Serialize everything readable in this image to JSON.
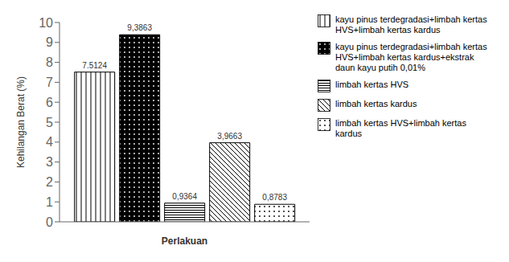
{
  "chart_data": {
    "type": "bar",
    "xlabel": "Perlakuan",
    "ylabel": "Kehilangan Berat (%)",
    "categories": [
      null
    ],
    "series": [
      {
        "name": "kayu pinus terdegradasi+limbah kertas\nHVS+limbah kertas kardus",
        "color": "white",
        "values": [
          7.5124
        ],
        "value_labels": [
          "7.5124"
        ]
      },
      {
        "name": "kayu pinus terdegradasi+limbah kertas\nHVS+limbah kertas kardus+ekstrak\ndaun kayu putih 0,01%",
        "color": "black",
        "values": [
          9.3863
        ],
        "value_labels": [
          "9,3863"
        ]
      },
      {
        "name": "limbah kertas HVS",
        "color": "white",
        "values": [
          0.9364
        ],
        "value_labels": [
          "0,9364"
        ]
      },
      {
        "name": "limbah kertas kardus",
        "color": "white",
        "values": [
          3.9663
        ],
        "value_labels": [
          "3,9663"
        ]
      },
      {
        "name": "limbah kertas HVS+limbah kertas\nkardus",
        "color": "white",
        "values": [
          0.8783
        ],
        "value_labels": [
          "0,8783"
        ]
      }
    ],
    "ylim": [
      0,
      10
    ],
    "yticks": [
      0,
      1,
      2,
      3,
      4,
      5,
      6,
      7,
      8,
      9,
      10
    ],
    "grid": false,
    "legend": "right",
    "data_labels": true,
    "tick_labels": "y"
  }
}
